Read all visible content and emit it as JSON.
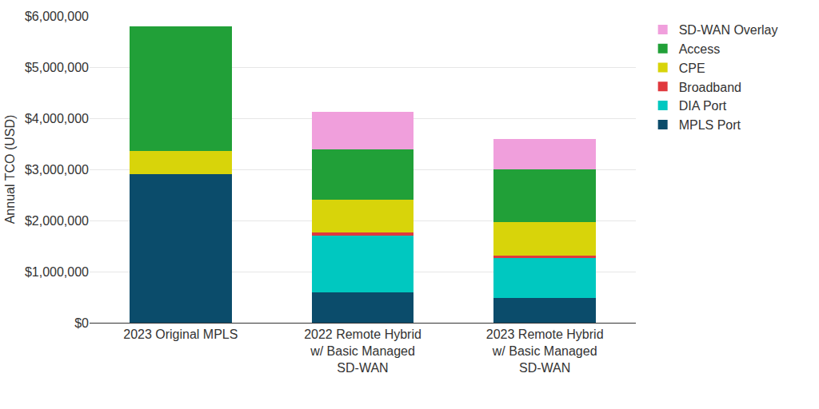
{
  "chart_data": {
    "type": "bar",
    "stacked": true,
    "grid": true,
    "legend": "right",
    "y_label": "Annual TCO (USD)",
    "categories": [
      "2023 Original MPLS",
      "2022 Remote Hybrid w/ Basic Managed SD-WAN",
      "2023 Remote Hybrid w/ Basic Managed SD-WAN"
    ],
    "series": [
      {
        "name": "MPLS Port",
        "color": "#0b4c6b",
        "values": [
          2900000,
          590000,
          480000
        ]
      },
      {
        "name": "DIA Port",
        "color": "#00c8c0",
        "values": [
          0,
          1120000,
          790000
        ]
      },
      {
        "name": "Broadband",
        "color": "#e0393e",
        "values": [
          0,
          50000,
          50000
        ]
      },
      {
        "name": "CPE",
        "color": "#d8d40a",
        "values": [
          460000,
          640000,
          650000
        ]
      },
      {
        "name": "Access",
        "color": "#21a038",
        "values": [
          2440000,
          990000,
          1030000
        ]
      },
      {
        "name": "SD-WAN Overlay",
        "color": "#f09fdc",
        "values": [
          0,
          740000,
          590000
        ]
      }
    ],
    "ylim": [
      0,
      6000000
    ],
    "yticks": [
      {
        "value": 0,
        "label": "$0"
      },
      {
        "value": 1000000,
        "label": "$1,000,000"
      },
      {
        "value": 2000000,
        "label": "$2,000,000"
      },
      {
        "value": 3000000,
        "label": "$3,000,000"
      },
      {
        "value": 4000000,
        "label": "$4,000,000"
      },
      {
        "value": 5000000,
        "label": "$5,000,000"
      },
      {
        "value": 6000000,
        "label": "$6,000,000"
      }
    ]
  }
}
